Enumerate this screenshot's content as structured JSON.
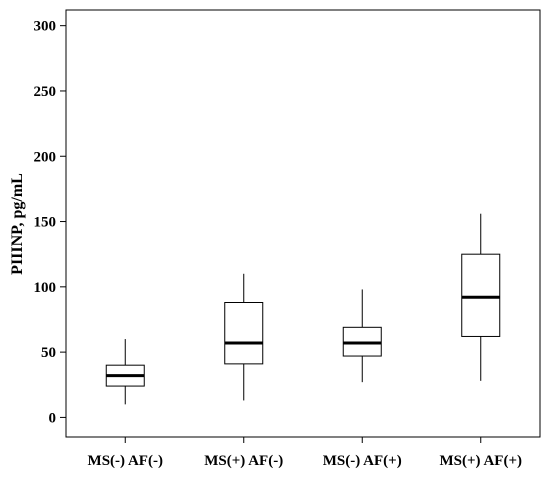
{
  "chart_data": {
    "type": "boxplot",
    "title": "",
    "xlabel": "",
    "ylabel": "PIIINP, pg/mL",
    "ylim": [
      -15,
      312
    ],
    "yticks": [
      0,
      50,
      100,
      150,
      200,
      250,
      300
    ],
    "grid": false,
    "categories": [
      "MS(-) AF(-)",
      "MS(+) AF(-)",
      "MS(-) AF(+)",
      "MS(+) AF(+)"
    ],
    "boxes": [
      {
        "category": "MS(-) AF(-)",
        "whisker_low": 10,
        "q1": 24,
        "median": 32,
        "q3": 40,
        "whisker_high": 60
      },
      {
        "category": "MS(+) AF(-)",
        "whisker_low": 13,
        "q1": 41,
        "median": 57,
        "q3": 88,
        "whisker_high": 110
      },
      {
        "category": "MS(-) AF(+)",
        "whisker_low": 27,
        "q1": 47,
        "median": 57,
        "q3": 69,
        "whisker_high": 98
      },
      {
        "category": "MS(+) AF(+)",
        "whisker_low": 28,
        "q1": 62,
        "median": 92,
        "q3": 125,
        "whisker_high": 156
      }
    ]
  }
}
